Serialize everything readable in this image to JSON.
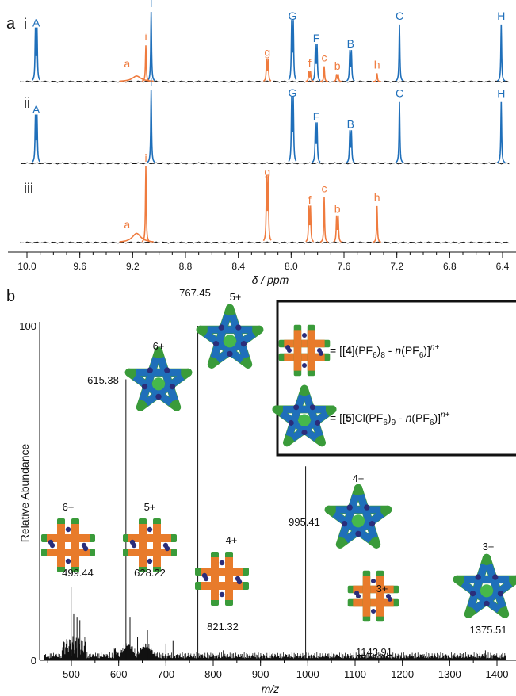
{
  "colors": {
    "blue": "#1f6fba",
    "orange": "#ef7b3e",
    "black": "#111111",
    "green": "#3a9b3a",
    "star_green": "#46b84b",
    "navy": "#2b2d7a",
    "orange_fill": "#e87b2b"
  },
  "panel_a": {
    "label": "a",
    "xlabel": "δ / ppm",
    "ticks": [
      "10.0",
      "9.6",
      "9.2",
      "8.8",
      "8.4",
      "8.0",
      "7.6",
      "7.2",
      "6.8",
      "6.4"
    ],
    "traces": [
      {
        "name": "i",
        "blue_peaks": [
          {
            "label": "A",
            "ppm": 9.93,
            "h": 0.72,
            "split": 0.012,
            "multi": 2
          },
          {
            "label": "I",
            "ppm": 9.06,
            "h": 1.0,
            "split": 0,
            "multi": 1
          },
          {
            "label": "G",
            "ppm": 7.99,
            "h": 0.82,
            "split": 0.012,
            "multi": 2
          },
          {
            "label": "F",
            "ppm": 7.81,
            "h": 0.5,
            "split": 0.012,
            "multi": 2
          },
          {
            "label": "B",
            "ppm": 7.55,
            "h": 0.42,
            "split": 0.012,
            "multi": 2
          },
          {
            "label": "C",
            "ppm": 7.18,
            "h": 0.82,
            "split": 0,
            "multi": 1
          },
          {
            "label": "H",
            "ppm": 6.41,
            "h": 0.82,
            "split": 0,
            "multi": 1
          }
        ],
        "orange_peaks": [
          {
            "label": "a",
            "ppm": 9.17,
            "h": 0.08,
            "split": 0,
            "multi": 1,
            "broad": true
          },
          {
            "label": "i",
            "ppm": 9.1,
            "h": 0.52,
            "split": 0,
            "multi": 1
          },
          {
            "label": "g",
            "ppm": 8.18,
            "h": 0.3,
            "split": 0.012,
            "multi": 2
          },
          {
            "label": "f",
            "ppm": 7.86,
            "h": 0.14,
            "split": 0.012,
            "multi": 2
          },
          {
            "label": "c",
            "ppm": 7.75,
            "h": 0.22,
            "split": 0,
            "multi": 1
          },
          {
            "label": "b",
            "ppm": 7.65,
            "h": 0.1,
            "split": 0.012,
            "multi": 2
          },
          {
            "label": "h",
            "ppm": 7.35,
            "h": 0.12,
            "split": 0,
            "multi": 1
          }
        ]
      },
      {
        "name": "ii",
        "blue_peaks": [
          {
            "label": "A",
            "ppm": 9.93,
            "h": 0.62,
            "split": 0.012,
            "multi": 2
          },
          {
            "label": "I",
            "ppm": 9.06,
            "h": 1.0,
            "split": 0,
            "multi": 1
          },
          {
            "label": "G",
            "ppm": 7.99,
            "h": 0.85,
            "split": 0.012,
            "multi": 2
          },
          {
            "label": "F",
            "ppm": 7.81,
            "h": 0.52,
            "split": 0.012,
            "multi": 2
          },
          {
            "label": "B",
            "ppm": 7.55,
            "h": 0.42,
            "split": 0.012,
            "multi": 2
          },
          {
            "label": "C",
            "ppm": 7.18,
            "h": 0.84,
            "split": 0,
            "multi": 1
          },
          {
            "label": "H",
            "ppm": 6.41,
            "h": 0.84,
            "split": 0,
            "multi": 1
          }
        ],
        "orange_peaks": []
      },
      {
        "name": "iii",
        "blue_peaks": [],
        "orange_peaks": [
          {
            "label": "a",
            "ppm": 9.17,
            "h": 0.12,
            "split": 0,
            "multi": 1,
            "broad": true
          },
          {
            "label": "i",
            "ppm": 9.1,
            "h": 1.0,
            "split": 0,
            "multi": 1
          },
          {
            "label": "g",
            "ppm": 8.18,
            "h": 0.82,
            "split": 0.012,
            "multi": 2
          },
          {
            "label": "f",
            "ppm": 7.86,
            "h": 0.45,
            "split": 0.012,
            "multi": 2
          },
          {
            "label": "c",
            "ppm": 7.75,
            "h": 0.6,
            "split": 0,
            "multi": 1
          },
          {
            "label": "b",
            "ppm": 7.65,
            "h": 0.33,
            "split": 0.012,
            "multi": 2
          },
          {
            "label": "h",
            "ppm": 7.35,
            "h": 0.48,
            "split": 0,
            "multi": 1
          }
        ]
      }
    ]
  },
  "panel_b": {
    "label": "b",
    "ylabel": "Relative Abundance",
    "xlabel": "m/z",
    "y_top_label": "100",
    "y_zero_label": "0",
    "ticks": [
      "500",
      "600",
      "700",
      "800",
      "900",
      "1000",
      "1100",
      "1200",
      "1300",
      "1400"
    ],
    "legend": {
      "grid_text": [
        "= [[",
        "4",
        "](PF",
        "6",
        ")",
        "8",
        " - ",
        "n",
        "(PF",
        "6",
        ")]",
        "n+"
      ],
      "star_text": [
        "= [[",
        "5",
        "]Cl(PF",
        "6",
        ")",
        "9",
        " - ",
        "n",
        "(PF",
        "6",
        ")]",
        "n+"
      ]
    },
    "peak_labels": [
      {
        "mz": 499.44,
        "text": "499.44",
        "charge": "6+",
        "shape": "grid"
      },
      {
        "mz": 615.38,
        "text": "615.38",
        "charge": "6+",
        "shape": "star"
      },
      {
        "mz": 628.22,
        "text": "628.22",
        "charge": "5+",
        "shape": "grid"
      },
      {
        "mz": 767.45,
        "text": "767.45",
        "charge": "5+",
        "shape": "star"
      },
      {
        "mz": 821.32,
        "text": "821.32",
        "charge": "4+",
        "shape": "grid"
      },
      {
        "mz": 995.41,
        "text": "995.41",
        "charge": "4+",
        "shape": "star"
      },
      {
        "mz": 1143.91,
        "text": "1143.91",
        "charge": "3+",
        "shape": "grid"
      },
      {
        "mz": 1375.51,
        "text": "1375.51",
        "charge": "3+",
        "shape": "star"
      }
    ]
  },
  "chart_data": [
    {
      "type": "line",
      "title": "",
      "xlabel": "δ / ppm",
      "ylabel": "",
      "xlim": [
        10.1,
        6.35
      ],
      "series": [
        {
          "name": "i"
        },
        {
          "name": "ii"
        },
        {
          "name": "iii"
        }
      ]
    },
    {
      "type": "bar",
      "title": "",
      "xlabel": "m/z",
      "ylabel": "Relative Abundance",
      "xlim": [
        440,
        1420
      ],
      "ylim": [
        0,
        100
      ],
      "x": [
        499.44,
        615.38,
        628.22,
        767.45,
        821.32,
        995.41,
        1143.91,
        1375.51
      ],
      "values": [
        22,
        84,
        17,
        100,
        3,
        58,
        1,
        3
      ]
    }
  ]
}
